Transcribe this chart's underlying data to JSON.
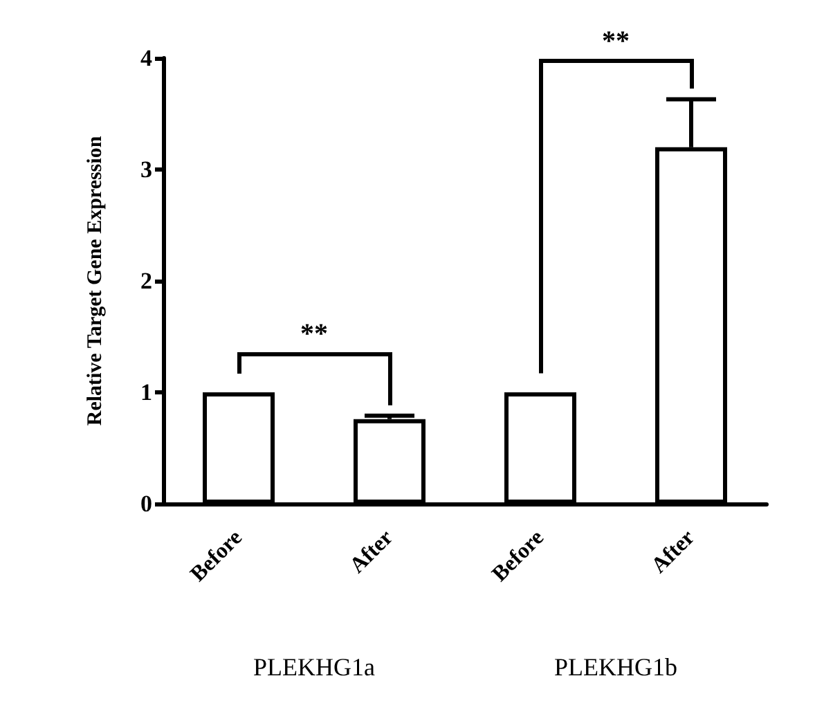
{
  "chart_data": {
    "type": "bar",
    "ylabel": "Relative Target Gene Expression",
    "categories": [
      "Before",
      "After",
      "Before",
      "After"
    ],
    "values": [
      1,
      0.76,
      1,
      3.2
    ],
    "errors": [
      null,
      0.03,
      null,
      0.43
    ],
    "color": "#ffffff",
    "ylim": [
      0,
      4
    ],
    "yticks": [
      0,
      1,
      2,
      3,
      4
    ],
    "grid": false,
    "annotations": [
      "**",
      "**",
      "PLEKHG1a",
      "PLEKHG1b"
    ]
  }
}
